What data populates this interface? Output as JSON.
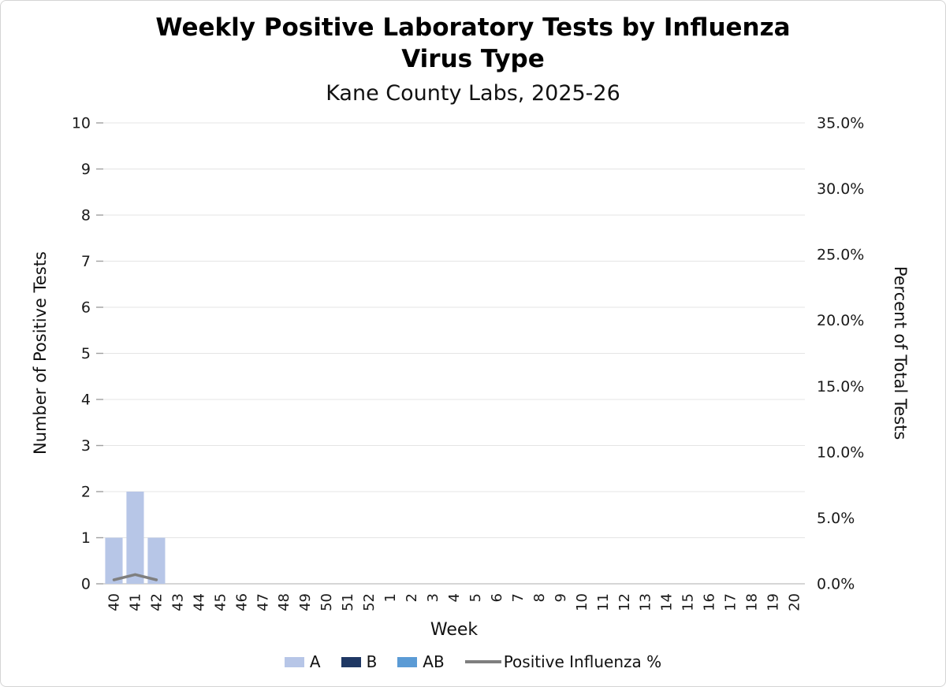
{
  "chart_data": {
    "type": "bar",
    "stacked": true,
    "grid": true,
    "legend_position": "bottom",
    "title": "Weekly Positive Laboratory Tests by Influenza Virus Type",
    "title_lines": [
      "Weekly Positive Laboratory Tests by Influenza",
      "Virus Type"
    ],
    "subtitle": "Kane County Labs, 2025-26",
    "xlabel": "Week",
    "ylabel_left": "Number of Positive Tests",
    "ylabel_right": "Percent of Total Tests",
    "categories": [
      "40",
      "41",
      "42",
      "43",
      "44",
      "45",
      "46",
      "47",
      "48",
      "49",
      "50",
      "51",
      "52",
      "1",
      "2",
      "3",
      "4",
      "5",
      "6",
      "7",
      "8",
      "9",
      "10",
      "11",
      "12",
      "13",
      "14",
      "15",
      "16",
      "17",
      "18",
      "19",
      "20"
    ],
    "series": [
      {
        "name": "A",
        "color": "#b7c6e7",
        "values": [
          1,
          2,
          1,
          0,
          0,
          0,
          0,
          0,
          0,
          0,
          0,
          0,
          0,
          0,
          0,
          0,
          0,
          0,
          0,
          0,
          0,
          0,
          0,
          0,
          0,
          0,
          0,
          0,
          0,
          0,
          0,
          0,
          0
        ]
      },
      {
        "name": "B",
        "color": "#1f3864",
        "values": [
          0,
          0,
          0,
          0,
          0,
          0,
          0,
          0,
          0,
          0,
          0,
          0,
          0,
          0,
          0,
          0,
          0,
          0,
          0,
          0,
          0,
          0,
          0,
          0,
          0,
          0,
          0,
          0,
          0,
          0,
          0,
          0,
          0
        ]
      },
      {
        "name": "AB",
        "color": "#5b9bd5",
        "values": [
          0,
          0,
          0,
          0,
          0,
          0,
          0,
          0,
          0,
          0,
          0,
          0,
          0,
          0,
          0,
          0,
          0,
          0,
          0,
          0,
          0,
          0,
          0,
          0,
          0,
          0,
          0,
          0,
          0,
          0,
          0,
          0,
          0
        ]
      }
    ],
    "line_series": {
      "name": "Positive Influenza %",
      "color": "#7f7f7f",
      "values": [
        0.3,
        0.7,
        0.3,
        null,
        null,
        null,
        null,
        null,
        null,
        null,
        null,
        null,
        null,
        null,
        null,
        null,
        null,
        null,
        null,
        null,
        null,
        null,
        null,
        null,
        null,
        null,
        null,
        null,
        null,
        null,
        null,
        null,
        null
      ]
    },
    "left_axis": {
      "min": 0,
      "max": 10,
      "step": 1,
      "tick_labels": [
        "0",
        "1",
        "2",
        "3",
        "4",
        "5",
        "6",
        "7",
        "8",
        "9",
        "10"
      ]
    },
    "right_axis": {
      "min": 0,
      "max": 35,
      "step": 5,
      "tick_labels": [
        "0.0%",
        "5.0%",
        "10.0%",
        "15.0%",
        "20.0%",
        "25.0%",
        "30.0%",
        "35.0%"
      ]
    }
  },
  "colors": {
    "background": "#ffffff",
    "border": "#d4d4d4",
    "grid": "#e4e4e4",
    "axis_line": "#c9c9c9",
    "tick": "#a0a0a0",
    "text": "#1a1a1a"
  }
}
